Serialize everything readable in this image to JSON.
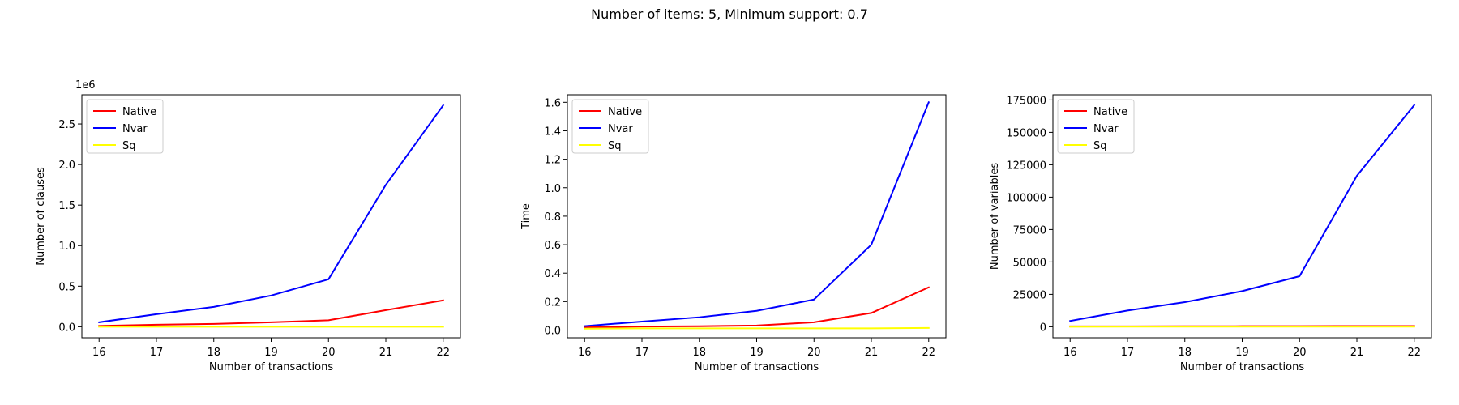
{
  "figure": {
    "suptitle": "Number of items: 5, Minimum support: 0.7"
  },
  "chart_data": [
    {
      "type": "line",
      "title": "",
      "xlabel": "Number of transactions",
      "ylabel": "Number of clauses",
      "offset_text": "1e6",
      "x": [
        16,
        17,
        18,
        19,
        20,
        21,
        22
      ],
      "xlim": [
        15.7,
        22.3
      ],
      "ylim": [
        -0.136,
        2.86
      ],
      "y_ticks": [
        0.0,
        0.5,
        1.0,
        1.5,
        2.0,
        2.5
      ],
      "y_tick_labels": [
        "0.0",
        "0.5",
        "1.0",
        "1.5",
        "2.0",
        "2.5"
      ],
      "x_tick_labels": [
        "16",
        "17",
        "18",
        "19",
        "20",
        "21",
        "22"
      ],
      "legend": "top-left",
      "grid": false,
      "series": [
        {
          "name": "Native",
          "color": "#ff0000",
          "values": [
            0.01,
            0.025,
            0.035,
            0.055,
            0.08,
            0.205,
            0.325
          ]
        },
        {
          "name": "Nvar",
          "color": "#0000ff",
          "values": [
            0.055,
            0.155,
            0.245,
            0.385,
            0.585,
            1.75,
            2.73
          ]
        },
        {
          "name": "Sq",
          "color": "#ffff00",
          "values": [
            0.0,
            0.0,
            0.0,
            0.0,
            0.0,
            0.0,
            0.0
          ]
        }
      ]
    },
    {
      "type": "line",
      "title": "",
      "xlabel": "Number of transactions",
      "ylabel": "Time",
      "offset_text": "",
      "x": [
        16,
        17,
        18,
        19,
        20,
        21,
        22
      ],
      "xlim": [
        15.7,
        22.3
      ],
      "ylim": [
        -0.054,
        1.653
      ],
      "y_ticks": [
        0.0,
        0.2,
        0.4,
        0.6,
        0.8,
        1.0,
        1.2,
        1.4,
        1.6
      ],
      "y_tick_labels": [
        "0.0",
        "0.2",
        "0.4",
        "0.6",
        "0.8",
        "1.0",
        "1.2",
        "1.4",
        "1.6"
      ],
      "x_tick_labels": [
        "16",
        "17",
        "18",
        "19",
        "20",
        "21",
        "22"
      ],
      "legend": "top-left",
      "grid": false,
      "series": [
        {
          "name": "Native",
          "color": "#ff0000",
          "values": [
            0.02,
            0.025,
            0.027,
            0.032,
            0.055,
            0.12,
            0.3
          ]
        },
        {
          "name": "Nvar",
          "color": "#0000ff",
          "values": [
            0.028,
            0.06,
            0.09,
            0.135,
            0.215,
            0.6,
            1.6
          ]
        },
        {
          "name": "Sq",
          "color": "#ffff00",
          "values": [
            0.01,
            0.012,
            0.012,
            0.012,
            0.012,
            0.012,
            0.015
          ]
        }
      ]
    },
    {
      "type": "line",
      "title": "",
      "xlabel": "Number of transactions",
      "ylabel": "Number of variables",
      "offset_text": "",
      "x": [
        16,
        17,
        18,
        19,
        20,
        21,
        22
      ],
      "xlim": [
        15.7,
        22.3
      ],
      "ylim": [
        -8500,
        179000
      ],
      "y_ticks": [
        0,
        25000,
        50000,
        75000,
        100000,
        125000,
        150000,
        175000
      ],
      "y_tick_labels": [
        "0",
        "25000",
        "50000",
        "75000",
        "100000",
        "125000",
        "150000",
        "175000"
      ],
      "x_tick_labels": [
        "16",
        "17",
        "18",
        "19",
        "20",
        "21",
        "22"
      ],
      "legend": "top-left",
      "grid": false,
      "series": [
        {
          "name": "Native",
          "color": "#ff0000",
          "values": [
            300,
            350,
            400,
            450,
            500,
            550,
            600
          ]
        },
        {
          "name": "Nvar",
          "color": "#0000ff",
          "values": [
            4500,
            12500,
            19000,
            27500,
            39000,
            116500,
            171000
          ]
        },
        {
          "name": "Sq",
          "color": "#ffff00",
          "values": [
            50,
            60,
            70,
            80,
            90,
            100,
            110
          ]
        }
      ]
    }
  ]
}
